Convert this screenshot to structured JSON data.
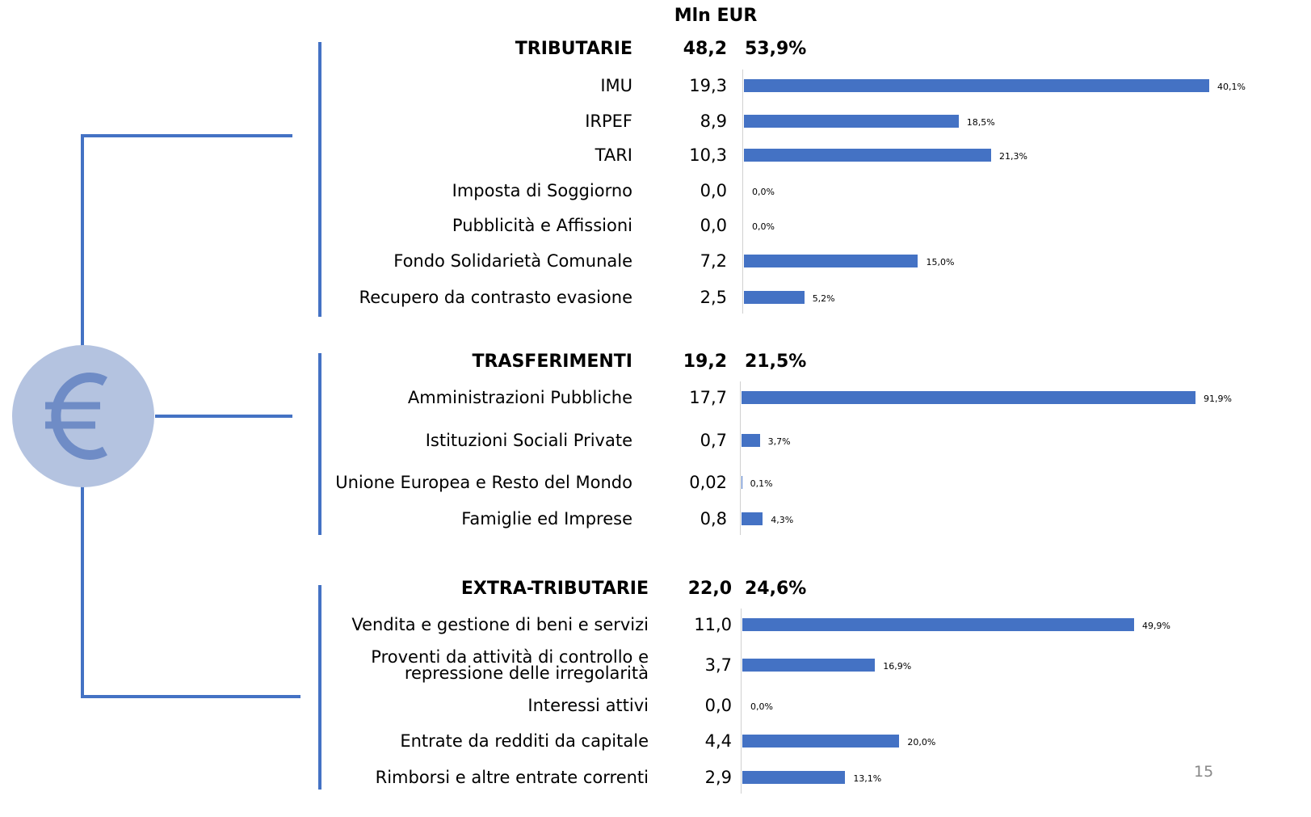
{
  "header": "Mln EUR",
  "page_number": "15",
  "chart_data": [
    {
      "type": "bar",
      "title": "TRIBUTARIE",
      "total": "48,2",
      "share": "53,9%",
      "color": "#4472c4",
      "categories": [
        "IMU",
        "IRPEF",
        "TARI",
        "Imposta di Soggiorno",
        "Pubblicità e Affissioni",
        "Fondo Solidarietà Comunale",
        "Recupero da contrasto evasione"
      ],
      "amounts": [
        "19,3",
        "8,9",
        "10,3",
        "0,0",
        "0,0",
        "7,2",
        "2,5"
      ],
      "values": [
        40.1,
        18.5,
        21.3,
        0.0,
        0.0,
        15.0,
        5.2
      ],
      "value_labels": [
        "40,1%",
        "18,5%",
        "21,3%",
        "0,0%",
        "0,0%",
        "15,0%",
        "5,2%"
      ]
    },
    {
      "type": "bar",
      "title": "TRASFERIMENTI",
      "total": "19,2",
      "share": "21,5%",
      "color": "#4472c4",
      "categories": [
        "Amministrazioni Pubbliche",
        "Istituzioni Sociali Private",
        "Unione Europea e Resto del Mondo",
        "Famiglie ed Imprese"
      ],
      "amounts": [
        "17,7",
        "0,7",
        "0,02",
        "0,8"
      ],
      "values": [
        91.9,
        3.7,
        0.1,
        4.3
      ],
      "value_labels": [
        "91,9%",
        "3,7%",
        "0,1%",
        "4,3%"
      ]
    },
    {
      "type": "bar",
      "title": "EXTRA-TRIBUTARIE",
      "total": "22,0",
      "share": "24,6%",
      "color": "#4472c4",
      "categories": [
        "Vendita e gestione di beni e servizi",
        "Proventi da attività di controllo e\nrepressione delle irregolarità",
        "Interessi attivi",
        "Entrate da redditi da capitale",
        "Rimborsi e altre entrate correnti"
      ],
      "amounts": [
        "11,0",
        "3,7",
        "0,0",
        "4,4",
        "2,9"
      ],
      "values": [
        49.9,
        16.9,
        0.0,
        20.0,
        13.1
      ],
      "value_labels": [
        "49,9%",
        "16,9%",
        "0,0%",
        "20,0%",
        "13,1%"
      ]
    }
  ]
}
